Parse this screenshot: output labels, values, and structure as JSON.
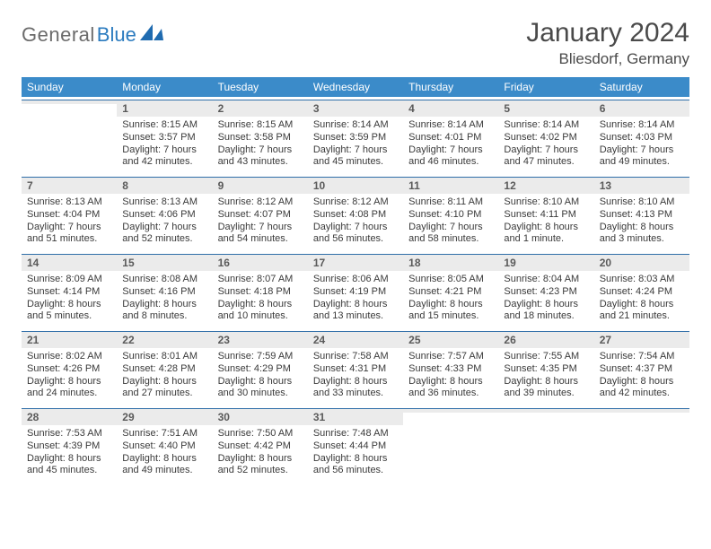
{
  "logo": {
    "part1": "General",
    "part2": "Blue"
  },
  "title": "January 2024",
  "location": "Bliesdorf, Germany",
  "colors": {
    "header_bg": "#3b8bc9",
    "rule": "#2f6ea8",
    "daynum_bg": "#ebebeb",
    "text": "#3a3a3a",
    "title_text": "#4a4a4a"
  },
  "dayNames": [
    "Sunday",
    "Monday",
    "Tuesday",
    "Wednesday",
    "Thursday",
    "Friday",
    "Saturday"
  ],
  "weeks": [
    [
      {
        "n": "",
        "sr": "",
        "ss": "",
        "dl": ""
      },
      {
        "n": "1",
        "sr": "Sunrise: 8:15 AM",
        "ss": "Sunset: 3:57 PM",
        "dl": "Daylight: 7 hours and 42 minutes."
      },
      {
        "n": "2",
        "sr": "Sunrise: 8:15 AM",
        "ss": "Sunset: 3:58 PM",
        "dl": "Daylight: 7 hours and 43 minutes."
      },
      {
        "n": "3",
        "sr": "Sunrise: 8:14 AM",
        "ss": "Sunset: 3:59 PM",
        "dl": "Daylight: 7 hours and 45 minutes."
      },
      {
        "n": "4",
        "sr": "Sunrise: 8:14 AM",
        "ss": "Sunset: 4:01 PM",
        "dl": "Daylight: 7 hours and 46 minutes."
      },
      {
        "n": "5",
        "sr": "Sunrise: 8:14 AM",
        "ss": "Sunset: 4:02 PM",
        "dl": "Daylight: 7 hours and 47 minutes."
      },
      {
        "n": "6",
        "sr": "Sunrise: 8:14 AM",
        "ss": "Sunset: 4:03 PM",
        "dl": "Daylight: 7 hours and 49 minutes."
      }
    ],
    [
      {
        "n": "7",
        "sr": "Sunrise: 8:13 AM",
        "ss": "Sunset: 4:04 PM",
        "dl": "Daylight: 7 hours and 51 minutes."
      },
      {
        "n": "8",
        "sr": "Sunrise: 8:13 AM",
        "ss": "Sunset: 4:06 PM",
        "dl": "Daylight: 7 hours and 52 minutes."
      },
      {
        "n": "9",
        "sr": "Sunrise: 8:12 AM",
        "ss": "Sunset: 4:07 PM",
        "dl": "Daylight: 7 hours and 54 minutes."
      },
      {
        "n": "10",
        "sr": "Sunrise: 8:12 AM",
        "ss": "Sunset: 4:08 PM",
        "dl": "Daylight: 7 hours and 56 minutes."
      },
      {
        "n": "11",
        "sr": "Sunrise: 8:11 AM",
        "ss": "Sunset: 4:10 PM",
        "dl": "Daylight: 7 hours and 58 minutes."
      },
      {
        "n": "12",
        "sr": "Sunrise: 8:10 AM",
        "ss": "Sunset: 4:11 PM",
        "dl": "Daylight: 8 hours and 1 minute."
      },
      {
        "n": "13",
        "sr": "Sunrise: 8:10 AM",
        "ss": "Sunset: 4:13 PM",
        "dl": "Daylight: 8 hours and 3 minutes."
      }
    ],
    [
      {
        "n": "14",
        "sr": "Sunrise: 8:09 AM",
        "ss": "Sunset: 4:14 PM",
        "dl": "Daylight: 8 hours and 5 minutes."
      },
      {
        "n": "15",
        "sr": "Sunrise: 8:08 AM",
        "ss": "Sunset: 4:16 PM",
        "dl": "Daylight: 8 hours and 8 minutes."
      },
      {
        "n": "16",
        "sr": "Sunrise: 8:07 AM",
        "ss": "Sunset: 4:18 PM",
        "dl": "Daylight: 8 hours and 10 minutes."
      },
      {
        "n": "17",
        "sr": "Sunrise: 8:06 AM",
        "ss": "Sunset: 4:19 PM",
        "dl": "Daylight: 8 hours and 13 minutes."
      },
      {
        "n": "18",
        "sr": "Sunrise: 8:05 AM",
        "ss": "Sunset: 4:21 PM",
        "dl": "Daylight: 8 hours and 15 minutes."
      },
      {
        "n": "19",
        "sr": "Sunrise: 8:04 AM",
        "ss": "Sunset: 4:23 PM",
        "dl": "Daylight: 8 hours and 18 minutes."
      },
      {
        "n": "20",
        "sr": "Sunrise: 8:03 AM",
        "ss": "Sunset: 4:24 PM",
        "dl": "Daylight: 8 hours and 21 minutes."
      }
    ],
    [
      {
        "n": "21",
        "sr": "Sunrise: 8:02 AM",
        "ss": "Sunset: 4:26 PM",
        "dl": "Daylight: 8 hours and 24 minutes."
      },
      {
        "n": "22",
        "sr": "Sunrise: 8:01 AM",
        "ss": "Sunset: 4:28 PM",
        "dl": "Daylight: 8 hours and 27 minutes."
      },
      {
        "n": "23",
        "sr": "Sunrise: 7:59 AM",
        "ss": "Sunset: 4:29 PM",
        "dl": "Daylight: 8 hours and 30 minutes."
      },
      {
        "n": "24",
        "sr": "Sunrise: 7:58 AM",
        "ss": "Sunset: 4:31 PM",
        "dl": "Daylight: 8 hours and 33 minutes."
      },
      {
        "n": "25",
        "sr": "Sunrise: 7:57 AM",
        "ss": "Sunset: 4:33 PM",
        "dl": "Daylight: 8 hours and 36 minutes."
      },
      {
        "n": "26",
        "sr": "Sunrise: 7:55 AM",
        "ss": "Sunset: 4:35 PM",
        "dl": "Daylight: 8 hours and 39 minutes."
      },
      {
        "n": "27",
        "sr": "Sunrise: 7:54 AM",
        "ss": "Sunset: 4:37 PM",
        "dl": "Daylight: 8 hours and 42 minutes."
      }
    ],
    [
      {
        "n": "28",
        "sr": "Sunrise: 7:53 AM",
        "ss": "Sunset: 4:39 PM",
        "dl": "Daylight: 8 hours and 45 minutes."
      },
      {
        "n": "29",
        "sr": "Sunrise: 7:51 AM",
        "ss": "Sunset: 4:40 PM",
        "dl": "Daylight: 8 hours and 49 minutes."
      },
      {
        "n": "30",
        "sr": "Sunrise: 7:50 AM",
        "ss": "Sunset: 4:42 PM",
        "dl": "Daylight: 8 hours and 52 minutes."
      },
      {
        "n": "31",
        "sr": "Sunrise: 7:48 AM",
        "ss": "Sunset: 4:44 PM",
        "dl": "Daylight: 8 hours and 56 minutes."
      },
      {
        "n": "",
        "sr": "",
        "ss": "",
        "dl": ""
      },
      {
        "n": "",
        "sr": "",
        "ss": "",
        "dl": ""
      },
      {
        "n": "",
        "sr": "",
        "ss": "",
        "dl": ""
      }
    ]
  ]
}
